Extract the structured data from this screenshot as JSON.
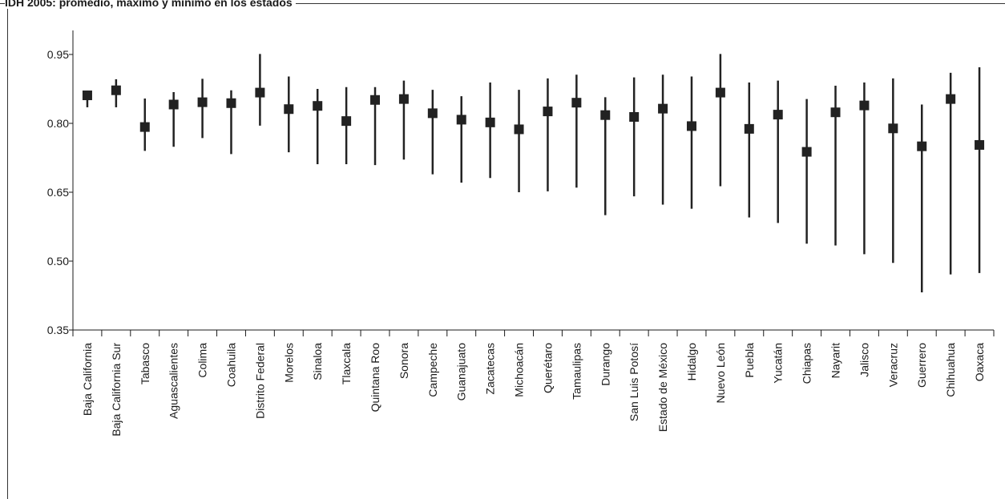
{
  "chart_data": {
    "type": "range",
    "title": "IDH 2005: promedio, máximo y mínimo en los estados",
    "ylim": [
      0.35,
      0.95
    ],
    "yticks": [
      "0.35",
      "0.50",
      "0.65",
      "0.80",
      "0.95"
    ],
    "ytick_values": [
      0.35,
      0.5,
      0.65,
      0.8,
      0.95
    ],
    "marker_color": "#222222",
    "categories": [
      "Baja California",
      "Baja California Sur",
      "Tabasco",
      "Aguascalientes",
      "Colima",
      "Coahuila",
      "Distrito Federal",
      "Morelos",
      "Sinaloa",
      "Tlaxcala",
      "Quintana Roo",
      "Sonora",
      "Campeche",
      "Guanajuato",
      "Zacatecas",
      "Michoacán",
      "Querétaro",
      "Tamaulipas",
      "Durango",
      "San Luis Potosí",
      "Estado de México",
      "Hidalgo",
      "Nuevo León",
      "Puebla",
      "Yucatán",
      "Chiapas",
      "Nayarit",
      "Jalisco",
      "Veracruz",
      "Guerrero",
      "Chihuahua",
      "Oaxaca"
    ],
    "series": [
      {
        "name": "promedio",
        "values": [
          0.861,
          0.872,
          0.792,
          0.841,
          0.846,
          0.844,
          0.867,
          0.831,
          0.838,
          0.805,
          0.851,
          0.853,
          0.822,
          0.808,
          0.802,
          0.787,
          0.826,
          0.845,
          0.818,
          0.814,
          0.832,
          0.794,
          0.867,
          0.788,
          0.819,
          0.738,
          0.824,
          0.839,
          0.789,
          0.75,
          0.853,
          0.753
        ]
      },
      {
        "name": "máximo",
        "values": [
          0.871,
          0.896,
          0.854,
          0.868,
          0.897,
          0.872,
          0.951,
          0.902,
          0.875,
          0.879,
          0.879,
          0.893,
          0.873,
          0.859,
          0.889,
          0.873,
          0.898,
          0.906,
          0.857,
          0.9,
          0.906,
          0.902,
          0.951,
          0.889,
          0.893,
          0.853,
          0.882,
          0.889,
          0.898,
          0.841,
          0.91,
          0.922
        ]
      },
      {
        "name": "mínimo",
        "values": [
          0.835,
          0.835,
          0.74,
          0.749,
          0.768,
          0.733,
          0.795,
          0.737,
          0.711,
          0.711,
          0.709,
          0.721,
          0.689,
          0.671,
          0.681,
          0.65,
          0.652,
          0.66,
          0.6,
          0.641,
          0.623,
          0.614,
          0.663,
          0.595,
          0.583,
          0.538,
          0.534,
          0.515,
          0.496,
          0.432,
          0.471,
          0.474
        ]
      }
    ]
  }
}
